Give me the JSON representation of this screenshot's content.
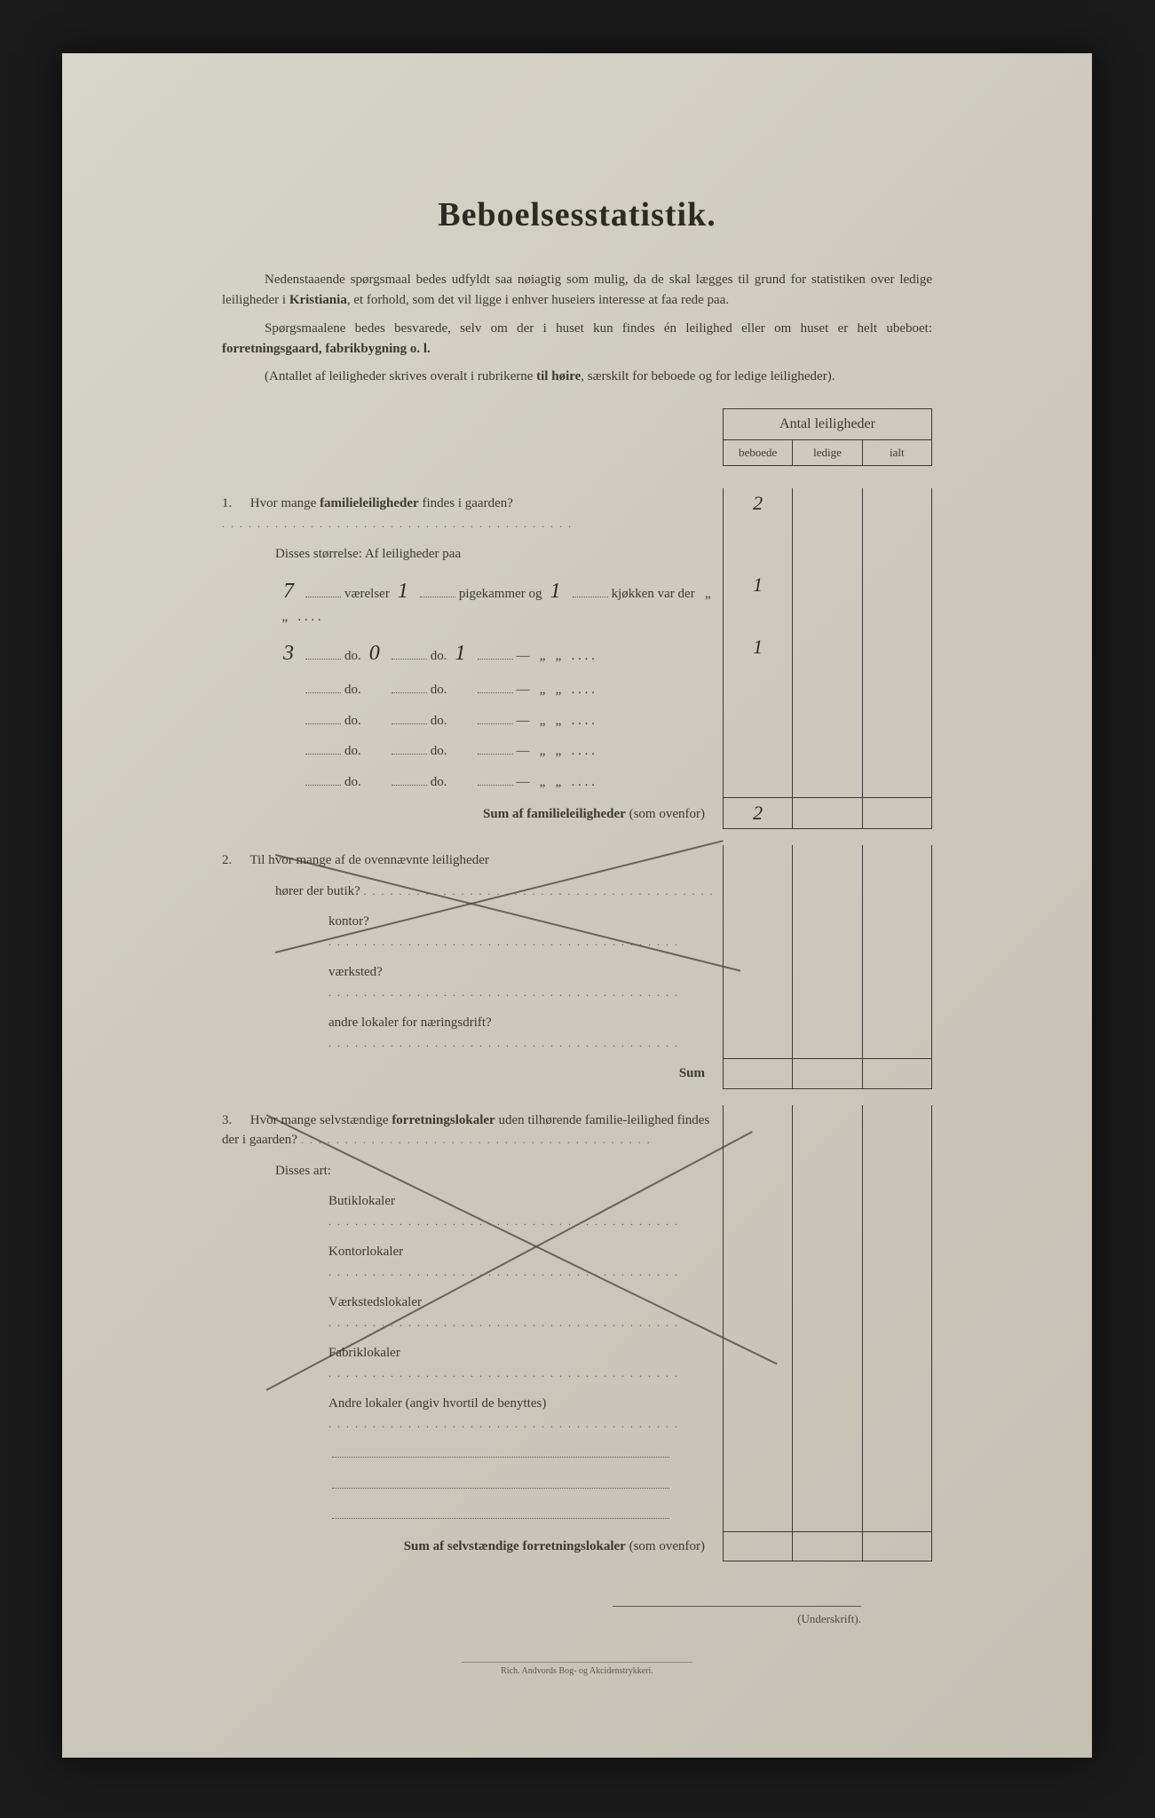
{
  "title": "Beboelsesstatistik.",
  "intro": {
    "p1a": "Nedenstaaende spørgsmaal bedes udfyldt saa nøiagtig som mulig, da de skal lægges til grund for statistiken over ledige leiligheder i ",
    "p1b_bold": "Kristiania",
    "p1c": ", et forhold, som det vil ligge i enhver huseiers interesse at faa rede paa.",
    "p2a": "Spørgsmaalene bedes besvarede, selv om der i huset kun findes én leilighed eller om huset er helt ubeboet: ",
    "p2b_bold": "forretningsgaard, fabrikbygning o. l.",
    "p3a": "(Antallet af leiligheder skrives overalt i rubrikerne ",
    "p3b_bold": "til høire",
    "p3c": ", særskilt for beboede og for ledige leiligheder)."
  },
  "table_header": {
    "title": "Antal leiligheder",
    "cols": [
      "beboede",
      "ledige",
      "ialt"
    ]
  },
  "q1": {
    "num": "1.",
    "text_a": "Hvor mange ",
    "text_b_bold": "familieleiligheder",
    "text_c": " findes i gaarden?",
    "val_beboede": "2",
    "sub_label": "Disses størrelse:   Af leiligheder paa",
    "rows": [
      {
        "vaer": "7",
        "pige": "1",
        "kjok": "1",
        "label_a": "værelser",
        "label_b": "pigekammer og",
        "label_c": "kjøkken var der",
        "val": "1"
      },
      {
        "vaer": "3",
        "pige": "0",
        "kjok": "1",
        "label_a": "do.",
        "label_b": "do.",
        "label_c": "—",
        "val": "1"
      },
      {
        "vaer": "",
        "pige": "",
        "kjok": "",
        "label_a": "do.",
        "label_b": "do.",
        "label_c": "—",
        "val": ""
      },
      {
        "vaer": "",
        "pige": "",
        "kjok": "",
        "label_a": "do.",
        "label_b": "do.",
        "label_c": "—",
        "val": ""
      },
      {
        "vaer": "",
        "pige": "",
        "kjok": "",
        "label_a": "do.",
        "label_b": "do.",
        "label_c": "—",
        "val": ""
      },
      {
        "vaer": "",
        "pige": "",
        "kjok": "",
        "label_a": "do.",
        "label_b": "do.",
        "label_c": "—",
        "val": ""
      }
    ],
    "sum_label": "Sum af familieleiligheder",
    "sum_paren": "(som ovenfor)",
    "sum_val": "2"
  },
  "q2": {
    "num": "2.",
    "text": "Til hvor mange af de ovennævnte leiligheder",
    "rows": [
      {
        "label": "hører der butik?",
        "val": ""
      },
      {
        "label": "kontor?",
        "val": ""
      },
      {
        "label": "værksted?",
        "val": ""
      },
      {
        "label": "andre lokaler for næringsdrift?",
        "val": ""
      }
    ],
    "sum_label": "Sum"
  },
  "q3": {
    "num": "3.",
    "text_a": "Hvor mange selvstændige ",
    "text_b_bold": "forretningslokaler",
    "text_c": " uden tilhørende familie-leilighed findes der i gaarden?",
    "art_label": "Disses art:",
    "rows": [
      {
        "label": "Butiklokaler"
      },
      {
        "label": "Kontorlokaler"
      },
      {
        "label": "Værkstedslokaler"
      },
      {
        "label": "Fabriklokaler"
      },
      {
        "label": "Andre lokaler (angiv hvortil de benyttes)"
      }
    ],
    "blank_rows": 3,
    "sum_label_bold": "Sum af selvstændige forretningslokaler",
    "sum_paren": "(som ovenfor)"
  },
  "signature": "(Underskrift).",
  "printer": "Rich. Andvords Bog- og Akcidenstrykkeri.",
  "colors": {
    "page_bg": "#d0ccbf",
    "text": "#3a3a32",
    "handwriting": "#2a2a22",
    "border": "#3a3a32"
  }
}
